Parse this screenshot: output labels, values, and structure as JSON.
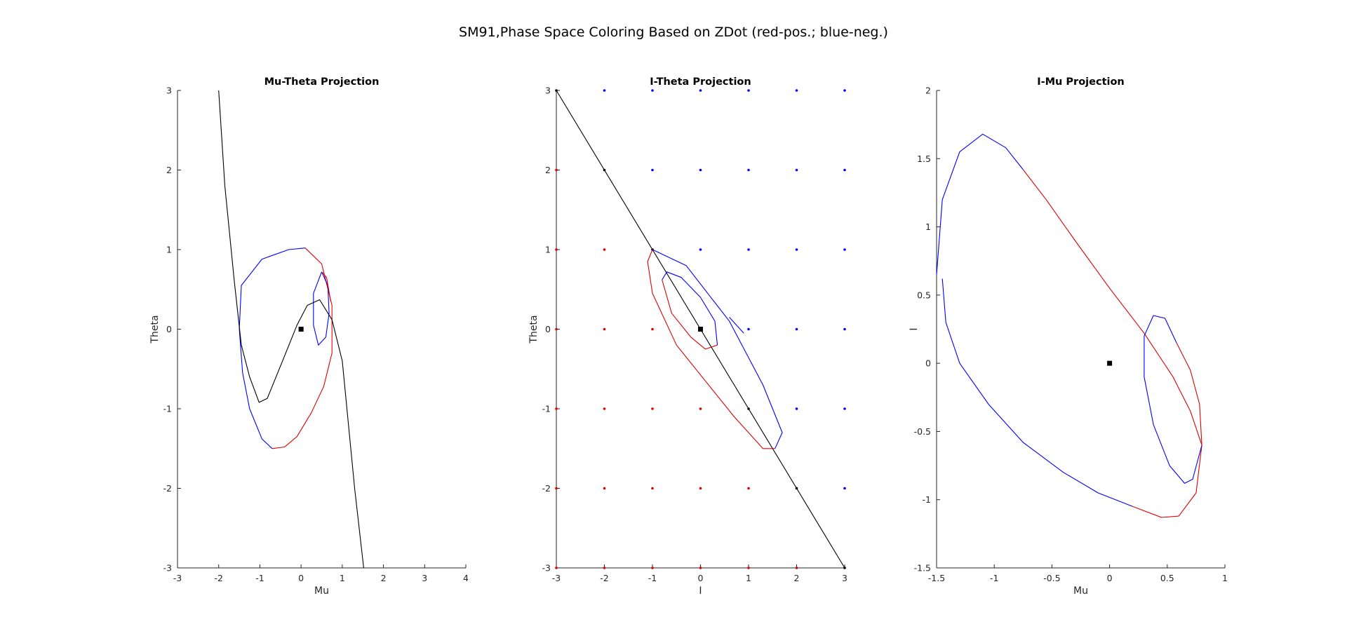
{
  "figure": {
    "title": "SM91,Phase Space Coloring Based on ZDot (red-pos.; blue-neg.)"
  },
  "chart_data": [
    {
      "type": "line",
      "title": "Mu-Theta Projection",
      "xlabel": "Mu",
      "ylabel": "Theta",
      "xlim": [
        -3,
        4
      ],
      "ylim": [
        -3,
        3
      ],
      "xticks": [
        "-3",
        "-2",
        "-1",
        "0",
        "1",
        "2",
        "3",
        "4"
      ],
      "yticks": [
        "-3",
        "-2",
        "-1",
        "0",
        "1",
        "2",
        "3"
      ],
      "grid": false,
      "series": [
        {
          "color": "#0000ff",
          "points": [
            [
              -1.5,
              0.0
            ],
            [
              -1.45,
              0.55
            ],
            [
              -0.95,
              0.88
            ],
            [
              -0.3,
              1.0
            ],
            [
              0.1,
              1.02
            ]
          ]
        },
        {
          "color": "#dd0000",
          "points": [
            [
              0.1,
              1.02
            ],
            [
              0.5,
              0.82
            ],
            [
              0.75,
              0.3
            ],
            [
              0.75,
              -0.3
            ],
            [
              0.55,
              -0.72
            ],
            [
              0.25,
              -1.05
            ],
            [
              -0.1,
              -1.35
            ],
            [
              -0.4,
              -1.48
            ],
            [
              -0.7,
              -1.5
            ]
          ]
        },
        {
          "color": "#0000ff",
          "points": [
            [
              -0.7,
              -1.5
            ],
            [
              -0.95,
              -1.38
            ],
            [
              -1.25,
              -1.0
            ],
            [
              -1.42,
              -0.55
            ],
            [
              -1.5,
              0.0
            ]
          ]
        },
        {
          "color": "#0000ff",
          "points": [
            [
              0.5,
              0.72
            ],
            [
              0.3,
              0.45
            ],
            [
              0.3,
              0.05
            ],
            [
              0.42,
              -0.2
            ],
            [
              0.6,
              -0.1
            ],
            [
              0.68,
              0.2
            ],
            [
              0.65,
              0.55
            ],
            [
              0.5,
              0.72
            ]
          ]
        },
        {
          "color": "#dd0000",
          "points": [
            [
              0.5,
              0.72
            ],
            [
              0.62,
              0.65
            ],
            [
              0.72,
              0.35
            ]
          ]
        },
        {
          "color": "#000000",
          "points": [
            [
              -2.0,
              3.0
            ],
            [
              -1.85,
              1.8
            ],
            [
              -1.62,
              0.6
            ],
            [
              -1.45,
              -0.2
            ],
            [
              -1.25,
              -0.6
            ],
            [
              -1.02,
              -0.92
            ],
            [
              -0.82,
              -0.87
            ],
            [
              -0.45,
              -0.4
            ],
            [
              -0.1,
              0.05
            ],
            [
              0.15,
              0.3
            ],
            [
              0.45,
              0.37
            ],
            [
              0.75,
              0.12
            ],
            [
              1.0,
              -0.4
            ],
            [
              1.15,
              -1.2
            ],
            [
              1.3,
              -2.0
            ],
            [
              1.52,
              -3.0
            ]
          ]
        }
      ],
      "fixed_points": [
        [
          0,
          0
        ]
      ],
      "grid_points": []
    },
    {
      "type": "line",
      "title": "I-Theta Projection",
      "xlabel": "I",
      "ylabel": "Theta",
      "xlim": [
        -3,
        3
      ],
      "ylim": [
        -3,
        3
      ],
      "xticks": [
        "-3",
        "-2",
        "-1",
        "0",
        "1",
        "2",
        "3"
      ],
      "yticks": [
        "-3",
        "-2",
        "-1",
        "0",
        "1",
        "2",
        "3"
      ],
      "grid": false,
      "series": [
        {
          "color": "#000000",
          "points": [
            [
              -3,
              3
            ],
            [
              3,
              -3
            ]
          ]
        },
        {
          "color": "#0000ff",
          "points": [
            [
              -1.0,
              1.0
            ],
            [
              -0.3,
              0.8
            ],
            [
              0.6,
              0.1
            ],
            [
              1.3,
              -0.7
            ],
            [
              1.7,
              -1.3
            ],
            [
              1.55,
              -1.5
            ]
          ]
        },
        {
          "color": "#dd0000",
          "points": [
            [
              1.55,
              -1.5
            ],
            [
              1.3,
              -1.5
            ],
            [
              0.7,
              -1.1
            ],
            [
              0.1,
              -0.65
            ],
            [
              -0.5,
              -0.2
            ],
            [
              -1.0,
              0.45
            ],
            [
              -1.1,
              0.85
            ],
            [
              -1.0,
              1.0
            ]
          ]
        },
        {
          "color": "#dd0000",
          "points": [
            [
              -0.8,
              0.62
            ],
            [
              -0.6,
              0.2
            ],
            [
              -0.2,
              -0.1
            ],
            [
              0.1,
              -0.25
            ],
            [
              0.35,
              -0.2
            ]
          ]
        },
        {
          "color": "#0000ff",
          "points": [
            [
              0.35,
              -0.2
            ],
            [
              0.3,
              0.1
            ],
            [
              0.0,
              0.4
            ],
            [
              -0.4,
              0.65
            ],
            [
              -0.7,
              0.72
            ],
            [
              -0.8,
              0.62
            ]
          ]
        },
        {
          "color": "#0000ff",
          "points": [
            [
              0.6,
              0.15
            ],
            [
              0.9,
              -0.05
            ]
          ]
        }
      ],
      "fixed_points": [
        [
          0,
          0
        ]
      ],
      "grid_points": [
        {
          "x": -3,
          "y": 3,
          "color": "#000000"
        },
        {
          "x": -2,
          "y": 3,
          "color": "#0000ff"
        },
        {
          "x": -1,
          "y": 3,
          "color": "#0000ff"
        },
        {
          "x": 0,
          "y": 3,
          "color": "#0000ff"
        },
        {
          "x": 1,
          "y": 3,
          "color": "#0000ff"
        },
        {
          "x": 2,
          "y": 3,
          "color": "#0000ff"
        },
        {
          "x": 3,
          "y": 3,
          "color": "#0000ff"
        },
        {
          "x": -3,
          "y": 2,
          "color": "#dd0000"
        },
        {
          "x": -2,
          "y": 2,
          "color": "#000000"
        },
        {
          "x": -1,
          "y": 2,
          "color": "#0000ff"
        },
        {
          "x": 0,
          "y": 2,
          "color": "#0000ff"
        },
        {
          "x": 1,
          "y": 2,
          "color": "#0000ff"
        },
        {
          "x": 2,
          "y": 2,
          "color": "#0000ff"
        },
        {
          "x": 3,
          "y": 2,
          "color": "#0000ff"
        },
        {
          "x": -3,
          "y": 1,
          "color": "#dd0000"
        },
        {
          "x": -2,
          "y": 1,
          "color": "#dd0000"
        },
        {
          "x": -1,
          "y": 1,
          "color": "#000000"
        },
        {
          "x": 0,
          "y": 1,
          "color": "#0000ff"
        },
        {
          "x": 1,
          "y": 1,
          "color": "#0000ff"
        },
        {
          "x": 2,
          "y": 1,
          "color": "#0000ff"
        },
        {
          "x": 3,
          "y": 1,
          "color": "#0000ff"
        },
        {
          "x": -3,
          "y": 0,
          "color": "#dd0000"
        },
        {
          "x": -2,
          "y": 0,
          "color": "#dd0000"
        },
        {
          "x": -1,
          "y": 0,
          "color": "#dd0000"
        },
        {
          "x": 1,
          "y": 0,
          "color": "#0000ff"
        },
        {
          "x": 2,
          "y": 0,
          "color": "#0000ff"
        },
        {
          "x": 3,
          "y": 0,
          "color": "#0000ff"
        },
        {
          "x": -3,
          "y": -1,
          "color": "#dd0000"
        },
        {
          "x": -2,
          "y": -1,
          "color": "#dd0000"
        },
        {
          "x": -1,
          "y": -1,
          "color": "#dd0000"
        },
        {
          "x": 0,
          "y": -1,
          "color": "#dd0000"
        },
        {
          "x": 1,
          "y": -1,
          "color": "#000000"
        },
        {
          "x": 2,
          "y": -1,
          "color": "#0000ff"
        },
        {
          "x": 3,
          "y": -1,
          "color": "#0000ff"
        },
        {
          "x": -3,
          "y": -2,
          "color": "#dd0000"
        },
        {
          "x": -2,
          "y": -2,
          "color": "#dd0000"
        },
        {
          "x": -1,
          "y": -2,
          "color": "#dd0000"
        },
        {
          "x": 0,
          "y": -2,
          "color": "#dd0000"
        },
        {
          "x": 1,
          "y": -2,
          "color": "#dd0000"
        },
        {
          "x": 2,
          "y": -2,
          "color": "#000000"
        },
        {
          "x": 3,
          "y": -2,
          "color": "#0000ff"
        },
        {
          "x": -3,
          "y": -3,
          "color": "#dd0000"
        },
        {
          "x": -2,
          "y": -3,
          "color": "#dd0000"
        },
        {
          "x": -1,
          "y": -3,
          "color": "#dd0000"
        },
        {
          "x": 0,
          "y": -3,
          "color": "#dd0000"
        },
        {
          "x": 1,
          "y": -3,
          "color": "#dd0000"
        },
        {
          "x": 2,
          "y": -3,
          "color": "#dd0000"
        },
        {
          "x": 3,
          "y": -3,
          "color": "#000000"
        }
      ]
    },
    {
      "type": "line",
      "title": "I-Mu Projection",
      "xlabel": "Mu",
      "ylabel": "I",
      "xlim": [
        -1.5,
        1
      ],
      "ylim": [
        -1.5,
        2
      ],
      "xticks": [
        "-1.5",
        "-1",
        "-0.5",
        "0",
        "0.5",
        "1"
      ],
      "yticks": [
        "-1.5",
        "-1",
        "-0.5",
        "0",
        "0.5",
        "1",
        "1.5",
        "2"
      ],
      "grid": false,
      "series": [
        {
          "color": "#0000ff",
          "points": [
            [
              -1.5,
              0.65
            ],
            [
              -1.45,
              1.2
            ],
            [
              -1.3,
              1.55
            ],
            [
              -1.1,
              1.68
            ],
            [
              -0.9,
              1.58
            ],
            [
              -0.75,
              1.42
            ]
          ]
        },
        {
          "color": "#dd0000",
          "points": [
            [
              -0.75,
              1.42
            ],
            [
              -0.55,
              1.2
            ],
            [
              -0.3,
              0.9
            ],
            [
              0.0,
              0.55
            ],
            [
              0.3,
              0.22
            ],
            [
              0.55,
              -0.1
            ],
            [
              0.7,
              -0.35
            ],
            [
              0.8,
              -0.6
            ],
            [
              0.75,
              -0.95
            ],
            [
              0.6,
              -1.12
            ],
            [
              0.45,
              -1.13
            ],
            [
              0.2,
              -1.05
            ]
          ]
        },
        {
          "color": "#0000ff",
          "points": [
            [
              0.2,
              -1.05
            ],
            [
              -0.1,
              -0.95
            ],
            [
              -0.4,
              -0.8
            ],
            [
              -0.75,
              -0.58
            ],
            [
              -1.05,
              -0.3
            ],
            [
              -1.3,
              0.0
            ],
            [
              -1.42,
              0.3
            ],
            [
              -1.45,
              0.62
            ]
          ]
        },
        {
          "color": "#0000ff",
          "points": [
            [
              0.8,
              -0.6
            ],
            [
              0.72,
              -0.85
            ],
            [
              0.65,
              -0.88
            ],
            [
              0.52,
              -0.75
            ],
            [
              0.38,
              -0.45
            ],
            [
              0.3,
              -0.1
            ],
            [
              0.3,
              0.2
            ],
            [
              0.38,
              0.35
            ],
            [
              0.48,
              0.33
            ],
            [
              0.58,
              0.15
            ]
          ]
        },
        {
          "color": "#dd0000",
          "points": [
            [
              0.58,
              0.15
            ],
            [
              0.7,
              -0.05
            ],
            [
              0.78,
              -0.3
            ],
            [
              0.8,
              -0.6
            ]
          ]
        }
      ],
      "fixed_points": [
        [
          0,
          0
        ]
      ],
      "grid_points": []
    }
  ]
}
